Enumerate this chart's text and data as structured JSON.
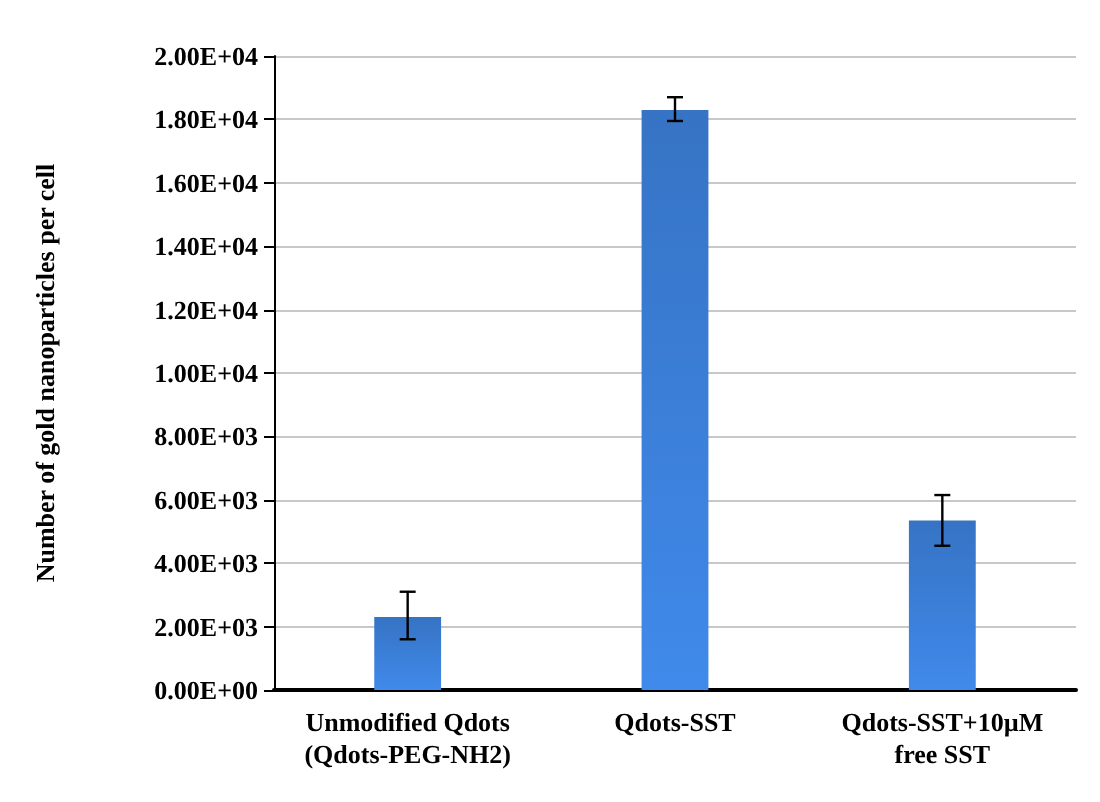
{
  "chart_data": {
    "type": "bar",
    "ylabel": "Number of gold nanoparticles per cell",
    "categories": [
      "Unmodified Qdots\n(Qdots-PEG-NH2)",
      "Qdots-SST",
      "Qdots-SST+10µM\nfree SST"
    ],
    "values": [
      2300,
      18300,
      5350
    ],
    "color": "#3673c4",
    "errors": [
      [
        1600,
        3100
      ],
      [
        17950,
        18700
      ],
      [
        4550,
        6150
      ]
    ],
    "ylim": [
      0,
      20000
    ],
    "yticks": [
      {
        "value": 0,
        "label": "0.00E+00"
      },
      {
        "value": 2000,
        "label": "2.00E+03"
      },
      {
        "value": 4000,
        "label": "4.00E+03"
      },
      {
        "value": 6000,
        "label": "6.00E+03"
      },
      {
        "value": 8000,
        "label": "8.00E+03"
      },
      {
        "value": 10000,
        "label": "1.00E+04"
      },
      {
        "value": 12000,
        "label": "1.20E+04"
      },
      {
        "value": 14000,
        "label": "1.40E+04"
      },
      {
        "value": 16000,
        "label": "1.60E+04"
      },
      {
        "value": 18000,
        "label": "1.80E+04"
      },
      {
        "value": 20000,
        "label": "2.00E+04"
      }
    ],
    "grid": "y"
  }
}
